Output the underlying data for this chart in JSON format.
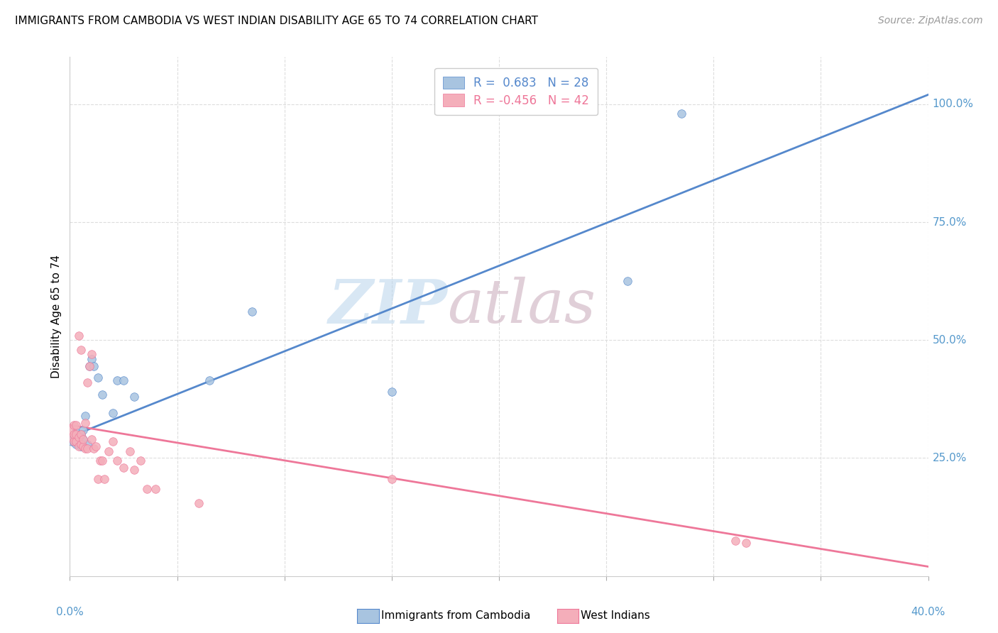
{
  "title": "IMMIGRANTS FROM CAMBODIA VS WEST INDIAN DISABILITY AGE 65 TO 74 CORRELATION CHART",
  "source": "Source: ZipAtlas.com",
  "ylabel": "Disability Age 65 to 74",
  "right_yticks": [
    "100.0%",
    "75.0%",
    "50.0%",
    "25.0%"
  ],
  "right_ytick_vals": [
    1.0,
    0.75,
    0.5,
    0.25
  ],
  "legend_r1": "R =  0.683   N = 28",
  "legend_r2": "R = -0.456   N = 42",
  "legend_label1": "Immigrants from Cambodia",
  "legend_label2": "West Indians",
  "blue_color": "#A8C4E0",
  "pink_color": "#F4AEBA",
  "blue_line_color": "#5588CC",
  "pink_line_color": "#EE7799",
  "watermark_zip": "ZIP",
  "watermark_atlas": "atlas",
  "watermark_color_zip": "#B8D4EC",
  "watermark_color_atlas": "#C8A8B8",
  "xlim": [
    0.0,
    0.4
  ],
  "ylim": [
    0.0,
    1.1
  ],
  "blue_x": [
    0.001,
    0.002,
    0.002,
    0.003,
    0.003,
    0.003,
    0.004,
    0.004,
    0.005,
    0.005,
    0.006,
    0.006,
    0.007,
    0.008,
    0.009,
    0.01,
    0.011,
    0.013,
    0.015,
    0.02,
    0.022,
    0.025,
    0.03,
    0.065,
    0.085,
    0.15,
    0.26,
    0.285
  ],
  "blue_y": [
    0.285,
    0.29,
    0.285,
    0.28,
    0.295,
    0.305,
    0.285,
    0.295,
    0.275,
    0.3,
    0.29,
    0.31,
    0.34,
    0.28,
    0.445,
    0.46,
    0.445,
    0.42,
    0.385,
    0.345,
    0.415,
    0.415,
    0.38,
    0.415,
    0.56,
    0.39,
    0.625,
    0.98
  ],
  "pink_x": [
    0.001,
    0.001,
    0.002,
    0.002,
    0.002,
    0.003,
    0.003,
    0.003,
    0.004,
    0.004,
    0.004,
    0.005,
    0.005,
    0.005,
    0.006,
    0.006,
    0.007,
    0.007,
    0.008,
    0.008,
    0.009,
    0.01,
    0.01,
    0.011,
    0.012,
    0.013,
    0.014,
    0.015,
    0.016,
    0.018,
    0.02,
    0.022,
    0.025,
    0.028,
    0.03,
    0.033,
    0.036,
    0.04,
    0.06,
    0.15,
    0.31,
    0.315
  ],
  "pink_y": [
    0.295,
    0.31,
    0.285,
    0.32,
    0.3,
    0.285,
    0.3,
    0.32,
    0.275,
    0.295,
    0.51,
    0.28,
    0.3,
    0.48,
    0.275,
    0.29,
    0.27,
    0.325,
    0.27,
    0.41,
    0.445,
    0.29,
    0.47,
    0.27,
    0.275,
    0.205,
    0.245,
    0.245,
    0.205,
    0.265,
    0.285,
    0.245,
    0.23,
    0.265,
    0.225,
    0.245,
    0.185,
    0.185,
    0.155,
    0.205,
    0.075,
    0.07
  ],
  "grid_color": "#DDDDDD",
  "title_fontsize": 11,
  "axis_label_fontsize": 11,
  "tick_fontsize": 11,
  "source_fontsize": 10
}
